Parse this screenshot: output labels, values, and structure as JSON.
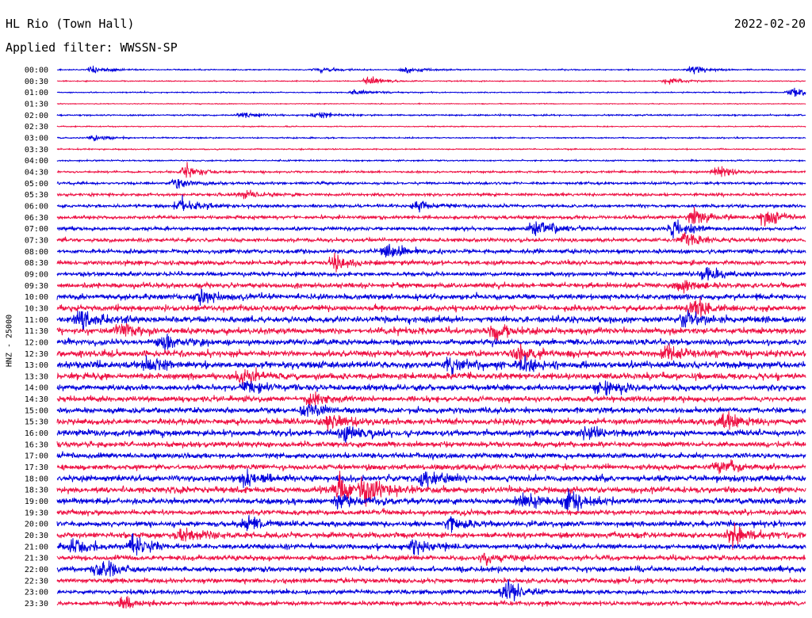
{
  "header": {
    "station": "HL Rio (Town Hall)",
    "filter": "Applied filter: WWSSN-SP",
    "date": "2022-02-20"
  },
  "colors": {
    "trace_a": "#0000dd",
    "trace_b": "#ee1144",
    "background": "#ffffff",
    "text": "#000000"
  },
  "chart_data": {
    "type": "line",
    "subtype": "helicorder",
    "ylabel": "HNZ - 25000",
    "row_labels": [
      "00:00",
      "00:30",
      "01:00",
      "01:30",
      "02:00",
      "02:30",
      "03:00",
      "03:30",
      "04:00",
      "04:30",
      "05:00",
      "05:30",
      "06:00",
      "06:30",
      "07:00",
      "07:30",
      "08:00",
      "08:30",
      "09:00",
      "09:30",
      "10:00",
      "10:30",
      "11:00",
      "11:30",
      "12:00",
      "12:30",
      "13:00",
      "13:30",
      "14:00",
      "14:30",
      "15:00",
      "15:30",
      "16:00",
      "16:30",
      "17:00",
      "17:30",
      "18:00",
      "18:30",
      "19:00",
      "19:30",
      "20:00",
      "20:30",
      "21:00",
      "21:30",
      "22:00",
      "22:30",
      "23:00",
      "23:30"
    ],
    "series_colors": [
      "#0000dd",
      "#ee1144"
    ],
    "grid": false,
    "row_duration_minutes": 30,
    "noise_level": [
      0.08,
      0.07,
      0.08,
      0.06,
      0.1,
      0.07,
      0.09,
      0.08,
      0.1,
      0.14,
      0.18,
      0.2,
      0.22,
      0.24,
      0.25,
      0.26,
      0.3,
      0.32,
      0.3,
      0.36,
      0.38,
      0.4,
      0.44,
      0.44,
      0.4,
      0.46,
      0.48,
      0.44,
      0.42,
      0.38,
      0.4,
      0.42,
      0.42,
      0.38,
      0.36,
      0.38,
      0.42,
      0.44,
      0.4,
      0.36,
      0.38,
      0.4,
      0.36,
      0.34,
      0.36,
      0.34,
      0.3,
      0.3
    ],
    "events": [
      {
        "row": 0,
        "minute": 1.5,
        "amplitude": 0.5
      },
      {
        "row": 0,
        "minute": 10.5,
        "amplitude": 0.5
      },
      {
        "row": 0,
        "minute": 14,
        "amplitude": 0.5
      },
      {
        "row": 0,
        "minute": 25.5,
        "amplitude": 0.6
      },
      {
        "row": 1,
        "minute": 12.5,
        "amplitude": 0.6
      },
      {
        "row": 1,
        "minute": 24.5,
        "amplitude": 0.5
      },
      {
        "row": 2,
        "minute": 12,
        "amplitude": 0.4
      },
      {
        "row": 2,
        "minute": 29.5,
        "amplitude": 0.9
      },
      {
        "row": 4,
        "minute": 7.5,
        "amplitude": 0.5
      },
      {
        "row": 4,
        "minute": 10.5,
        "amplitude": 0.6
      },
      {
        "row": 6,
        "minute": 1.5,
        "amplitude": 0.4
      },
      {
        "row": 9,
        "minute": 5.2,
        "amplitude": 0.9
      },
      {
        "row": 9,
        "minute": 26.5,
        "amplitude": 0.8
      },
      {
        "row": 10,
        "minute": 4.8,
        "amplitude": 0.9
      },
      {
        "row": 11,
        "minute": 7.5,
        "amplitude": 0.8
      },
      {
        "row": 12,
        "minute": 5,
        "amplitude": 1.1
      },
      {
        "row": 12,
        "minute": 14.5,
        "amplitude": 0.9
      },
      {
        "row": 13,
        "minute": 25.5,
        "amplitude": 1.3
      },
      {
        "row": 13,
        "minute": 28.4,
        "amplitude": 1.6
      },
      {
        "row": 14,
        "minute": 19.2,
        "amplitude": 1.5
      },
      {
        "row": 14,
        "minute": 24.8,
        "amplitude": 1.4
      },
      {
        "row": 15,
        "minute": 25.2,
        "amplitude": 1.1
      },
      {
        "row": 16,
        "minute": 13.3,
        "amplitude": 1.2
      },
      {
        "row": 17,
        "minute": 11.2,
        "amplitude": 1
      },
      {
        "row": 18,
        "minute": 26,
        "amplitude": 0.9
      },
      {
        "row": 19,
        "minute": 25,
        "amplitude": 1.1
      },
      {
        "row": 20,
        "minute": 5.8,
        "amplitude": 1
      },
      {
        "row": 21,
        "minute": 25.5,
        "amplitude": 1.3
      },
      {
        "row": 22,
        "minute": 1,
        "amplitude": 1.3
      },
      {
        "row": 22,
        "minute": 25.2,
        "amplitude": 1.1
      },
      {
        "row": 23,
        "minute": 2.6,
        "amplitude": 1
      },
      {
        "row": 23,
        "minute": 17.5,
        "amplitude": 1
      },
      {
        "row": 24,
        "minute": 4.3,
        "amplitude": 1.1
      },
      {
        "row": 25,
        "minute": 18.5,
        "amplitude": 1.2
      },
      {
        "row": 25,
        "minute": 24.5,
        "amplitude": 1.1
      },
      {
        "row": 26,
        "minute": 3.6,
        "amplitude": 1.2
      },
      {
        "row": 26,
        "minute": 15.8,
        "amplitude": 1.1
      },
      {
        "row": 26,
        "minute": 18.7,
        "amplitude": 1.3
      },
      {
        "row": 27,
        "minute": 7.5,
        "amplitude": 1
      },
      {
        "row": 28,
        "minute": 7.6,
        "amplitude": 1.2
      },
      {
        "row": 28,
        "minute": 21.8,
        "amplitude": 1
      },
      {
        "row": 29,
        "minute": 10.3,
        "amplitude": 1
      },
      {
        "row": 30,
        "minute": 10,
        "amplitude": 0.8
      },
      {
        "row": 31,
        "minute": 11,
        "amplitude": 1.3
      },
      {
        "row": 31,
        "minute": 26.7,
        "amplitude": 1.2
      },
      {
        "row": 32,
        "minute": 11.6,
        "amplitude": 1.3
      },
      {
        "row": 32,
        "minute": 21.3,
        "amplitude": 1
      },
      {
        "row": 35,
        "minute": 26.5,
        "amplitude": 1
      },
      {
        "row": 36,
        "minute": 7.6,
        "amplitude": 1.2
      },
      {
        "row": 36,
        "minute": 14.7,
        "amplitude": 1.4
      },
      {
        "row": 37,
        "minute": 11.3,
        "amplitude": 2
      },
      {
        "row": 37,
        "minute": 12.4,
        "amplitude": 2.5
      },
      {
        "row": 38,
        "minute": 11.4,
        "amplitude": 1.2
      },
      {
        "row": 38,
        "minute": 18.6,
        "amplitude": 1.3
      },
      {
        "row": 38,
        "minute": 20.5,
        "amplitude": 1.8
      },
      {
        "row": 40,
        "minute": 7.7,
        "amplitude": 1.1
      },
      {
        "row": 40,
        "minute": 15.8,
        "amplitude": 1.1
      },
      {
        "row": 41,
        "minute": 5.1,
        "amplitude": 1.2
      },
      {
        "row": 41,
        "minute": 27.1,
        "amplitude": 1.4
      },
      {
        "row": 42,
        "minute": 0.7,
        "amplitude": 1.3
      },
      {
        "row": 42,
        "minute": 3.1,
        "amplitude": 1.4
      },
      {
        "row": 42,
        "minute": 14.3,
        "amplitude": 1.3
      },
      {
        "row": 43,
        "minute": 17.2,
        "amplitude": 1.1
      },
      {
        "row": 44,
        "minute": 1.8,
        "amplitude": 1.3
      },
      {
        "row": 46,
        "minute": 18,
        "amplitude": 1.7
      },
      {
        "row": 47,
        "minute": 2.6,
        "amplitude": 0.7
      }
    ]
  }
}
